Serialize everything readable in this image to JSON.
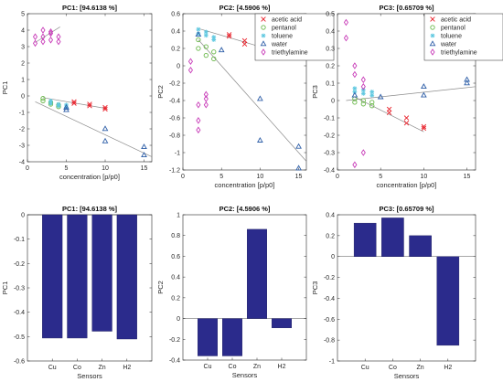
{
  "colors": {
    "acetic_acid": "#e8202a",
    "pentanol": "#6ab84a",
    "toluene": "#5ec8e0",
    "water": "#2f5fa8",
    "triethylamine": "#c83cb8",
    "fit": "#8c8c8c",
    "bar": "#2b2b8c"
  },
  "chart_data": [
    {
      "type": "scatter",
      "title": "PC1: [94.6138 %]",
      "xlabel": "concentration [p/p0]",
      "ylabel": "PC1",
      "xlim": [
        0,
        16
      ],
      "ylim": [
        -4,
        5
      ],
      "xticks": [
        0,
        5,
        10,
        15
      ],
      "xtick_labels": [
        "0",
        "5",
        "10",
        "15"
      ],
      "yticks": [
        -4,
        -3,
        -2,
        -1,
        0,
        1,
        2,
        3,
        4,
        5
      ],
      "ytick_labels": [
        "-4",
        "-3",
        "-2",
        "-1",
        "0",
        "1",
        "2",
        "3",
        "4",
        "5"
      ],
      "legend": [],
      "series": [
        {
          "name": "acetic acid",
          "marker": "x",
          "color_key": "acetic_acid",
          "x": [
            6,
            6,
            8,
            8,
            10,
            10
          ],
          "y": [
            -0.35,
            -0.45,
            -0.5,
            -0.6,
            -0.7,
            -0.8
          ]
        },
        {
          "name": "pentanol",
          "marker": "o",
          "color_key": "pentanol",
          "x": [
            2,
            2,
            3,
            3,
            4,
            4
          ],
          "y": [
            -0.15,
            -0.3,
            -0.4,
            -0.5,
            -0.55,
            -0.65
          ]
        },
        {
          "name": "toluene",
          "marker": "*",
          "color_key": "toluene",
          "x": [
            3,
            3,
            4,
            4,
            5,
            5
          ],
          "y": [
            -0.3,
            -0.45,
            -0.5,
            -0.6,
            -0.55,
            -0.7
          ]
        },
        {
          "name": "water",
          "marker": "^",
          "color_key": "water",
          "x": [
            5,
            5,
            10,
            10,
            15,
            15
          ],
          "y": [
            -0.7,
            -0.85,
            -2.0,
            -2.75,
            -3.1,
            -3.6
          ]
        },
        {
          "name": "triethylamine",
          "marker": "d",
          "color_key": "triethylamine",
          "x": [
            1,
            1,
            2,
            2,
            2,
            3,
            3,
            3,
            4,
            4
          ],
          "y": [
            3.2,
            3.6,
            3.3,
            3.6,
            4.0,
            3.4,
            3.8,
            3.9,
            3.3,
            3.6
          ]
        }
      ],
      "fit_lines": [
        {
          "x": [
            1,
            4.2
          ],
          "y": [
            3.25,
            4.2
          ]
        },
        {
          "x": [
            2,
            10
          ],
          "y": [
            -0.1,
            -0.75
          ]
        },
        {
          "x": [
            1,
            16
          ],
          "y": [
            -0.35,
            -3.7
          ]
        }
      ]
    },
    {
      "type": "scatter",
      "title": "PC2: [4.5906 %]",
      "xlabel": "concentration [p/p0]",
      "ylabel": "PC2",
      "xlim": [
        0,
        16
      ],
      "ylim": [
        -1.2,
        0.6
      ],
      "xticks": [
        0,
        5,
        10,
        15
      ],
      "xtick_labels": [
        "0",
        "5",
        "10",
        "15"
      ],
      "yticks": [
        -1.2,
        -1,
        -0.8,
        -0.6,
        -0.4,
        -0.2,
        0,
        0.2,
        0.4,
        0.6
      ],
      "ytick_labels": [
        "-1.2",
        "-1",
        "-0.8",
        "-0.6",
        "-0.4",
        "-0.2",
        "0",
        "0.2",
        "0.4",
        "0.6"
      ],
      "legend": [
        "acetic acid",
        "pentanol",
        "toluene",
        "water",
        "triethylamine"
      ],
      "series": [
        {
          "name": "acetic acid",
          "marker": "x",
          "color_key": "acetic_acid",
          "x": [
            6,
            6,
            8,
            8,
            10,
            10
          ],
          "y": [
            0.36,
            0.34,
            0.29,
            0.25,
            0.24,
            0.21
          ]
        },
        {
          "name": "pentanol",
          "marker": "o",
          "color_key": "pentanol",
          "x": [
            2,
            2,
            3,
            3,
            4,
            4
          ],
          "y": [
            0.3,
            0.2,
            0.22,
            0.12,
            0.16,
            0.08
          ]
        },
        {
          "name": "toluene",
          "marker": "*",
          "color_key": "toluene",
          "x": [
            2,
            2,
            3,
            3,
            4,
            4
          ],
          "y": [
            0.42,
            0.37,
            0.39,
            0.35,
            0.33,
            0.3
          ]
        },
        {
          "name": "water",
          "marker": "^",
          "color_key": "water",
          "x": [
            2,
            5,
            10,
            10,
            15,
            15
          ],
          "y": [
            0.36,
            0.18,
            -0.38,
            -0.86,
            -0.93,
            -1.18
          ]
        },
        {
          "name": "triethylamine",
          "marker": "d",
          "color_key": "triethylamine",
          "x": [
            1,
            1,
            2,
            2,
            2,
            3,
            3,
            3
          ],
          "y": [
            0.05,
            -0.05,
            -0.45,
            -0.63,
            -0.74,
            -0.33,
            -0.38,
            -0.45
          ]
        }
      ],
      "fit_lines": [
        {
          "x": [
            2,
            10
          ],
          "y": [
            0.43,
            0.22
          ]
        },
        {
          "x": [
            2,
            16
          ],
          "y": [
            0.3,
            -1.1
          ]
        }
      ]
    },
    {
      "type": "scatter",
      "title": "PC3: [0.65709 %]",
      "xlabel": "concentration [p/p0]",
      "ylabel": "PC3",
      "xlim": [
        0,
        16
      ],
      "ylim": [
        -0.4,
        0.5
      ],
      "xticks": [
        0,
        5,
        10,
        15
      ],
      "xtick_labels": [
        "0",
        "5",
        "10",
        "15"
      ],
      "yticks": [
        -0.4,
        -0.3,
        -0.2,
        -0.1,
        0,
        0.1,
        0.2,
        0.3,
        0.4,
        0.5
      ],
      "ytick_labels": [
        "-0.4",
        "-0.3",
        "-0.2",
        "-0.1",
        "0",
        "0.1",
        "0.2",
        "0.3",
        "0.4",
        "0.5"
      ],
      "legend": [
        "acetic acid",
        "pentanol",
        "toluene",
        "water",
        "triethylamine"
      ],
      "series": [
        {
          "name": "acetic acid",
          "marker": "x",
          "color_key": "acetic_acid",
          "x": [
            6,
            6,
            8,
            8,
            10,
            10
          ],
          "y": [
            -0.05,
            -0.07,
            -0.1,
            -0.13,
            -0.15,
            -0.16
          ]
        },
        {
          "name": "pentanol",
          "marker": "o",
          "color_key": "pentanol",
          "x": [
            2,
            2,
            3,
            3,
            4,
            4
          ],
          "y": [
            0.01,
            -0.01,
            0.0,
            -0.02,
            -0.01,
            -0.03
          ]
        },
        {
          "name": "toluene",
          "marker": "*",
          "color_key": "toluene",
          "x": [
            2,
            2,
            3,
            3,
            4,
            4
          ],
          "y": [
            0.07,
            0.05,
            0.06,
            0.04,
            0.05,
            0.03
          ]
        },
        {
          "name": "water",
          "marker": "^",
          "color_key": "water",
          "x": [
            2,
            5,
            10,
            10,
            15,
            15
          ],
          "y": [
            0.03,
            0.02,
            0.08,
            0.03,
            0.12,
            0.1
          ]
        },
        {
          "name": "triethylamine",
          "marker": "d",
          "color_key": "triethylamine",
          "x": [
            1,
            1,
            2,
            2,
            2,
            3,
            3,
            3
          ],
          "y": [
            0.45,
            0.36,
            0.2,
            0.15,
            -0.37,
            -0.3,
            0.08,
            0.12
          ]
        }
      ],
      "fit_lines": [
        {
          "x": [
            2,
            10
          ],
          "y": [
            0.02,
            -0.18
          ]
        },
        {
          "x": [
            1,
            16
          ],
          "y": [
            0.0,
            0.08
          ]
        }
      ]
    },
    {
      "type": "bar",
      "title": "PC1: [94.6138 %]",
      "xlabel": "Sensors",
      "ylabel": "PC1",
      "categories": [
        "Cu",
        "Co",
        "Zn",
        "H2"
      ],
      "values": [
        -0.506,
        -0.506,
        -0.478,
        -0.51
      ],
      "ylim": [
        -0.6,
        0
      ],
      "yticks": [
        -0.6,
        -0.5,
        -0.4,
        -0.3,
        -0.2,
        -0.1,
        0
      ],
      "ytick_labels": [
        "-0.6",
        "-0.5",
        "-0.4",
        "-0.3",
        "-0.2",
        "-0.1",
        "0"
      ]
    },
    {
      "type": "bar",
      "title": "PC2: [4.5906 %]",
      "xlabel": "Sensors",
      "ylabel": "PC2",
      "categories": [
        "Cu",
        "Co",
        "Zn",
        "H2"
      ],
      "values": [
        -0.36,
        -0.36,
        0.86,
        -0.09
      ],
      "ylim": [
        -0.4,
        1
      ],
      "yticks": [
        -0.4,
        -0.2,
        0,
        0.2,
        0.4,
        0.6,
        0.8,
        1
      ],
      "ytick_labels": [
        "-0.4",
        "-0.2",
        "0",
        "0.2",
        "0.4",
        "0.6",
        "0.8",
        "1"
      ]
    },
    {
      "type": "bar",
      "title": "PC3: [0.65709 %]",
      "xlabel": "Sensors",
      "ylabel": "PC3",
      "categories": [
        "Cu",
        "Co",
        "Zn",
        "H2"
      ],
      "values": [
        0.32,
        0.37,
        0.2,
        -0.85
      ],
      "ylim": [
        -1,
        0.4
      ],
      "yticks": [
        -1,
        -0.8,
        -0.6,
        -0.4,
        -0.2,
        0,
        0.2,
        0.4
      ],
      "ytick_labels": [
        "-1",
        "-0.8",
        "-0.6",
        "-0.4",
        "-0.2",
        "0",
        "0.2",
        "0.4"
      ]
    }
  ]
}
